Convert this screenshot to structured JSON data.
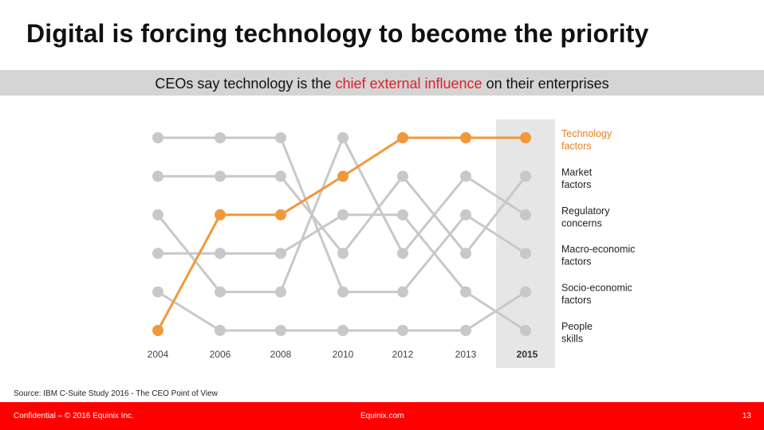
{
  "slide": {
    "title": "Digital is forcing technology to become the priority",
    "subtitle_pre": "CEOs say technology is the ",
    "subtitle_highlight": "chief external influence",
    "subtitle_post": " on their enterprises",
    "source": "Source: IBM C-Suite Study 2016 - The CEO Point of View",
    "footer_left": "Confidential – © 2016 Equinix Inc.",
    "footer_center": "Equinix.com",
    "footer_right": "13"
  },
  "chart_data": {
    "type": "line",
    "title": "",
    "xlabel": "",
    "ylabel": "",
    "x": [
      "2004",
      "2006",
      "2008",
      "2010",
      "2012",
      "2013",
      "2015"
    ],
    "highlight_x": "2015",
    "rank_axis": {
      "min": 1,
      "max": 6,
      "direction": "1 at top"
    },
    "grid": false,
    "colors": {
      "highlight": "#f0993b",
      "other": "#c8c8c8",
      "band": "#e6e6e6"
    },
    "series": [
      {
        "name": "Technology factors",
        "label_lines": [
          "Technology",
          "factors"
        ],
        "highlight": true,
        "ranks": [
          6,
          3,
          3,
          2,
          1,
          1,
          1
        ]
      },
      {
        "name": "Market factors",
        "label_lines": [
          "Market",
          "factors"
        ],
        "highlight": false,
        "ranks": [
          2,
          2,
          2,
          4,
          2,
          4,
          2
        ]
      },
      {
        "name": "Regulatory concerns",
        "label_lines": [
          "Regulatory",
          "concerns"
        ],
        "highlight": false,
        "ranks": [
          3,
          5,
          5,
          1,
          4,
          2,
          3
        ]
      },
      {
        "name": "Macro-economic factors",
        "label_lines": [
          "Macro-economic",
          "factors"
        ],
        "highlight": false,
        "ranks": [
          1,
          1,
          1,
          5,
          5,
          3,
          4
        ]
      },
      {
        "name": "People skills",
        "label_lines": [
          "People",
          "skills"
        ],
        "highlight": false,
        "ranks": [
          4,
          4,
          4,
          3,
          3,
          5,
          6
        ]
      },
      {
        "name": "Socio-economic factors",
        "label_lines": [
          "Socio-economic",
          "factors"
        ],
        "highlight": false,
        "ranks": [
          5,
          6,
          6,
          6,
          6,
          6,
          5
        ]
      }
    ]
  }
}
